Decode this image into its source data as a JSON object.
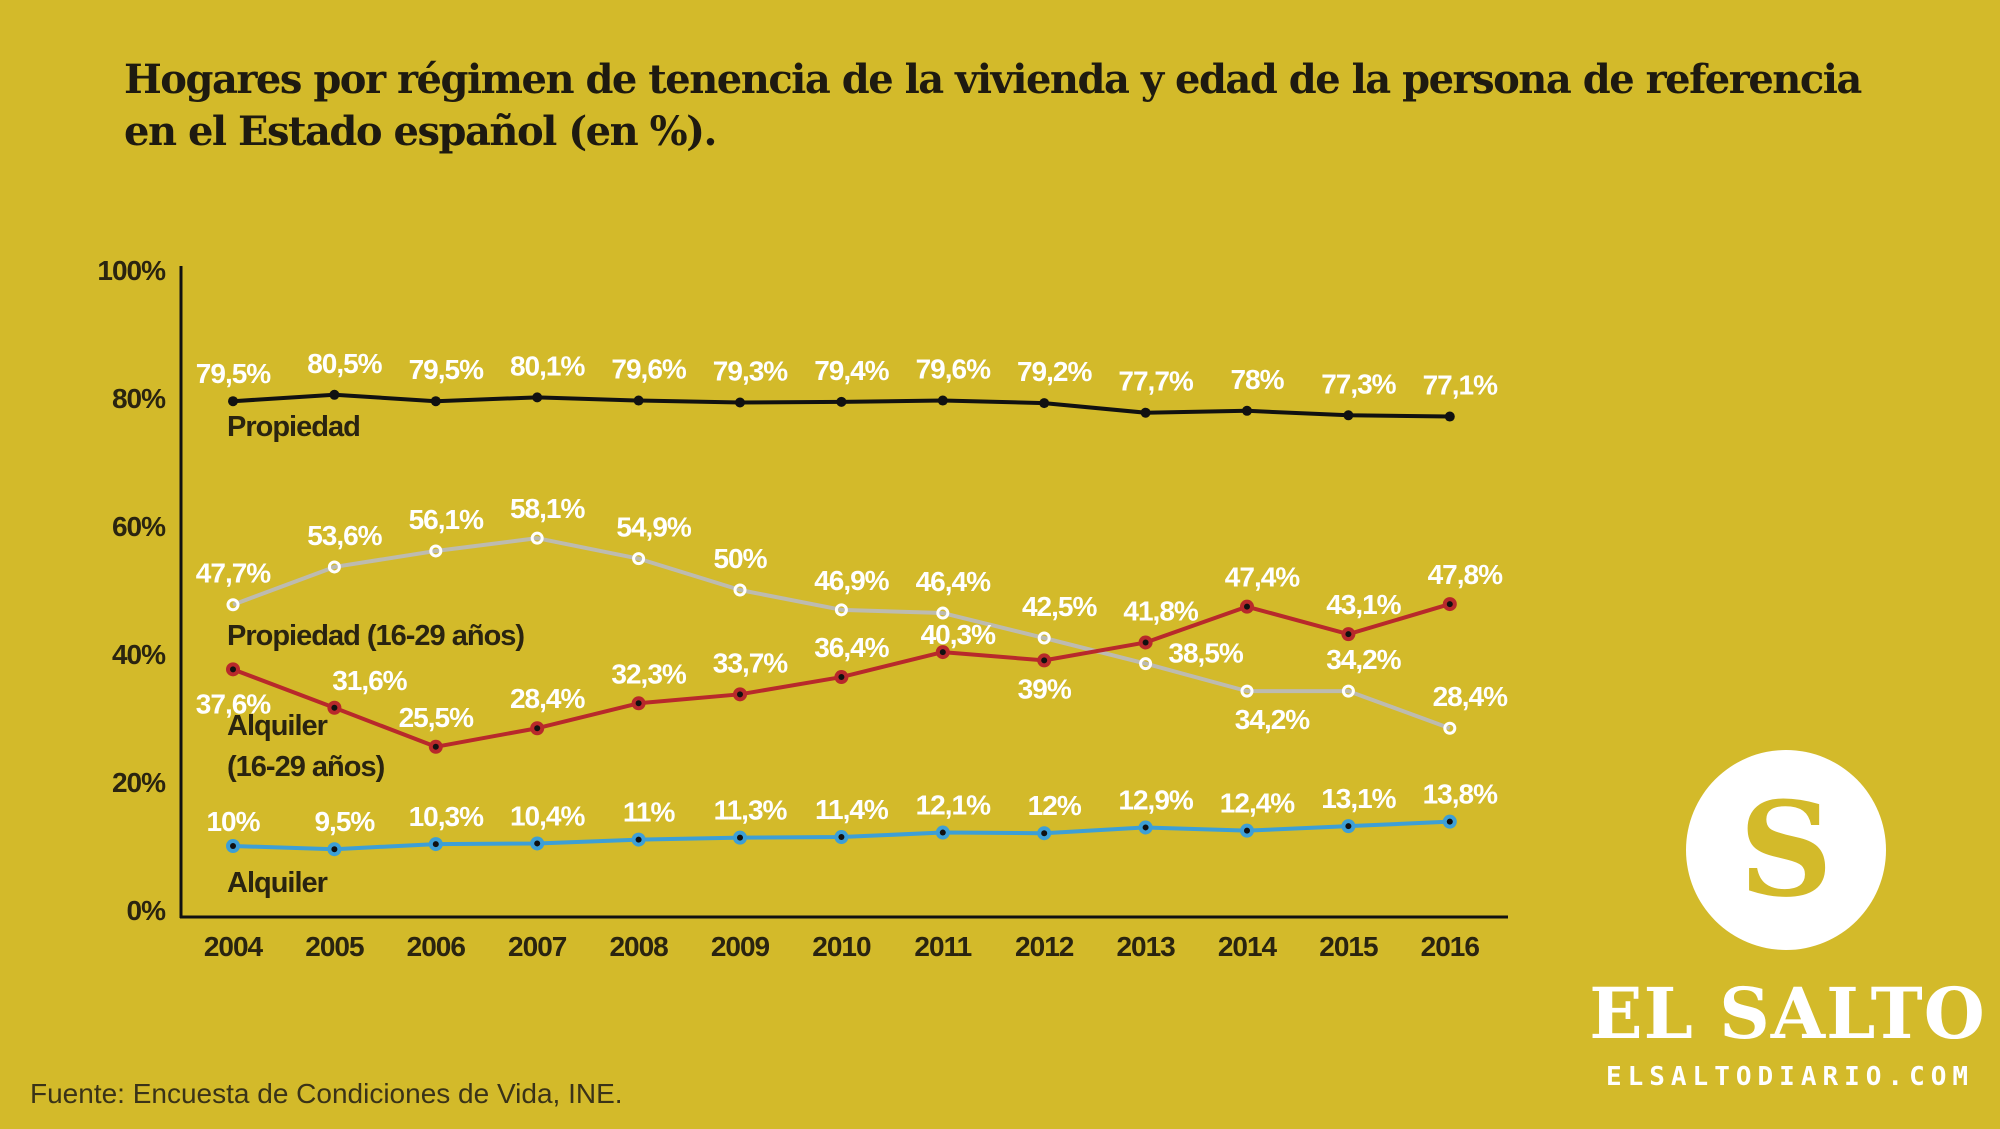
{
  "title": {
    "line1": "Hogares por régimen de tenencia de la vivienda y edad de la persona de referencia",
    "line2": "en el Estado español (en %)."
  },
  "source": "Fuente: Encuesta de Condiciones de Vida, INE.",
  "brand": {
    "logo_letter": "S",
    "name": "EL SALTO",
    "site": "ELSALTODIARIO.COM"
  },
  "chart_data": {
    "type": "line",
    "title": "Hogares por régimen de tenencia de la vivienda y edad de la persona de referencia en el Estado español (en %).",
    "xlabel": "",
    "ylabel": "",
    "ylim": [
      0,
      100
    ],
    "yticks": [
      "0%",
      "20%",
      "40%",
      "60%",
      "80%",
      "100%"
    ],
    "ytick_values": [
      0,
      20,
      40,
      60,
      80,
      100
    ],
    "categories": [
      "2004",
      "2005",
      "2006",
      "2007",
      "2008",
      "2009",
      "2010",
      "2011",
      "2012",
      "2013",
      "2014",
      "2015",
      "2016"
    ],
    "grid": false,
    "series": [
      {
        "name": "Propiedad",
        "name_lines": [
          "Propiedad"
        ],
        "color": "#111111",
        "marker": "filled",
        "values": [
          79.5,
          80.5,
          79.5,
          80.1,
          79.6,
          79.3,
          79.4,
          79.6,
          79.2,
          77.7,
          78,
          77.3,
          77.1
        ],
        "labels": [
          "79,5%",
          "80,5%",
          "79,5%",
          "80,1%",
          "79,6%",
          "79,3%",
          "79,4%",
          "79,6%",
          "79,2%",
          "77,7%",
          "78%",
          "77,3%",
          "77,1%"
        ]
      },
      {
        "name": "Propiedad (16-29 años)",
        "name_lines": [
          "Propiedad (16-29 años)"
        ],
        "color": "#BDBBB0",
        "marker": "hollow",
        "values": [
          47.7,
          53.6,
          56.1,
          58.1,
          54.9,
          50,
          46.9,
          46.4,
          42.5,
          38.5,
          34.2,
          34.2,
          28.4
        ],
        "labels": [
          "47,7%",
          "53,6%",
          "56,1%",
          "58,1%",
          "54,9%",
          "50%",
          "46,9%",
          "46,4%",
          "42,5%",
          "38,5%",
          "34,2%",
          "34,2%",
          "28,4%"
        ]
      },
      {
        "name": "Alquiler (16-29 años)",
        "name_lines": [
          "Alquiler",
          "(16-29 años)"
        ],
        "color": "#B8292B",
        "marker": "red",
        "values": [
          37.6,
          31.6,
          25.5,
          28.4,
          32.3,
          33.7,
          36.4,
          40.3,
          39,
          41.8,
          47.4,
          43.1,
          47.8
        ],
        "labels": [
          "37,6%",
          "31,6%",
          "25,5%",
          "28,4%",
          "32,3%",
          "33,7%",
          "36,4%",
          "40,3%",
          "39%",
          "41,8%",
          "47,4%",
          "43,1%",
          "47,8%"
        ]
      },
      {
        "name": "Alquiler",
        "name_lines": [
          "Alquiler"
        ],
        "color": "#3D9FD6",
        "marker": "blue",
        "values": [
          10,
          9.5,
          10.3,
          10.4,
          11,
          11.3,
          11.4,
          12.1,
          12,
          12.9,
          12.4,
          13.1,
          13.8
        ],
        "labels": [
          "10%",
          "9,5%",
          "10,3%",
          "10,4%",
          "11%",
          "11,3%",
          "11,4%",
          "12,1%",
          "12%",
          "12,9%",
          "12,4%",
          "13,1%",
          "13,8%"
        ]
      }
    ]
  }
}
